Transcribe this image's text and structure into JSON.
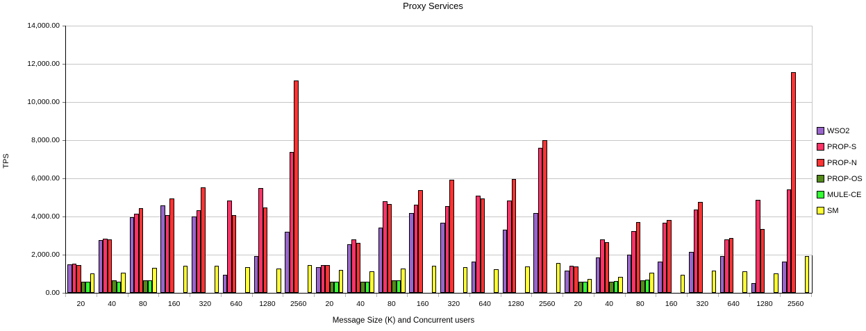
{
  "chart_data": {
    "type": "bar",
    "title": "Proxy Services",
    "xlabel": "Message Size (K) and Concurrent users",
    "ylabel": "TPS",
    "ylim": [
      0,
      14000
    ],
    "y_step": 2000,
    "y_ticks": [
      "0.00",
      "2,000.00",
      "4,000.00",
      "6,000.00",
      "8,000.00",
      "10,000.00",
      "12,000.00",
      "14,000.00"
    ],
    "grid": true,
    "legend_position": "right",
    "categories": [
      "20",
      "40",
      "80",
      "160",
      "320",
      "640",
      "1280",
      "2560",
      "20",
      "40",
      "80",
      "160",
      "320",
      "640",
      "1280",
      "2560",
      "20",
      "40",
      "80",
      "160",
      "320",
      "640",
      "1280",
      "2560"
    ],
    "series": [
      {
        "name": "WSO2",
        "color": "#9966CC",
        "values": [
          1490,
          2750,
          3960,
          4590,
          4000,
          950,
          1940,
          3200,
          1360,
          2550,
          3430,
          4170,
          3690,
          1620,
          3320,
          4170,
          1160,
          1850,
          2010,
          1650,
          2130,
          1940,
          510,
          1650
        ]
      },
      {
        "name": "PROP-S",
        "color": "#FF3366",
        "values": [
          1540,
          2840,
          4150,
          4070,
          4330,
          4820,
          5490,
          7370,
          1470,
          2810,
          4800,
          4620,
          4530,
          5100,
          4840,
          7600,
          1400,
          2800,
          3220,
          3660,
          4350,
          2790,
          4860,
          5420
        ]
      },
      {
        "name": "PROP-N",
        "color": "#FF3333",
        "values": [
          1440,
          2790,
          4420,
          4950,
          5530,
          4080,
          4480,
          11130,
          1460,
          2620,
          4640,
          5370,
          5930,
          4960,
          5950,
          7990,
          1370,
          2640,
          3700,
          3810,
          4780,
          2870,
          3330,
          11550
        ]
      },
      {
        "name": "PROP-OS",
        "color": "#538A19",
        "values": [
          595,
          650,
          655,
          0,
          0,
          0,
          0,
          0,
          595,
          595,
          640,
          0,
          0,
          0,
          0,
          0,
          595,
          595,
          640,
          0,
          0,
          0,
          0,
          0
        ]
      },
      {
        "name": "MULE-CE",
        "color": "#33FF33",
        "values": [
          595,
          595,
          640,
          0,
          0,
          0,
          0,
          0,
          595,
          580,
          640,
          0,
          0,
          0,
          0,
          0,
          595,
          620,
          700,
          0,
          0,
          0,
          0,
          0
        ]
      },
      {
        "name": "SM",
        "color": "#FFFF33",
        "values": [
          1010,
          1050,
          1310,
          1410,
          1420,
          1345,
          1285,
          1450,
          1200,
          1130,
          1260,
          1410,
          1330,
          1240,
          1370,
          1560,
          740,
          850,
          1040,
          950,
          1165,
          1115,
          1010,
          1915
        ]
      }
    ]
  }
}
